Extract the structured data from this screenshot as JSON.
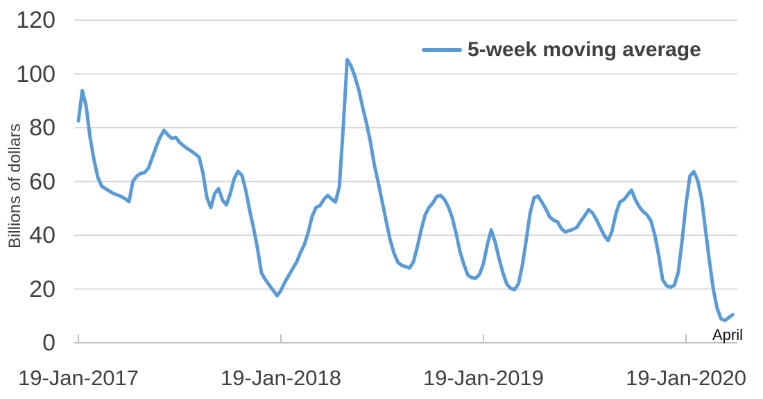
{
  "chart_data": {
    "type": "line",
    "title": "",
    "ylabel": "Billions of dollars",
    "ylim": [
      0,
      120
    ],
    "y_ticks": [
      0,
      20,
      40,
      60,
      80,
      100,
      120
    ],
    "grid": "horizontal",
    "legend_position": "top-right-inside",
    "x_axis": {
      "interval": "weekly",
      "start_label": "19-Jan-2017",
      "tick_labels": [
        "19-Jan-2017",
        "19-Jan-2018",
        "19-Jan-2019",
        "19-Jan-2020"
      ],
      "tick_week_indices": [
        0,
        52,
        104,
        156
      ]
    },
    "series": [
      {
        "name": "5-week moving average",
        "color": "#5B9BD5",
        "values": [
          82.5,
          93.8,
          88,
          76.5,
          68,
          61.5,
          58.2,
          57.3,
          56.4,
          55.5,
          55,
          54.4,
          53.6,
          52.5,
          60,
          62,
          63,
          63.3,
          65,
          69,
          73,
          76.5,
          79,
          77.3,
          76,
          76.4,
          74.5,
          73.3,
          72.2,
          71.3,
          70.2,
          69,
          63,
          54,
          50.3,
          55.5,
          57.3,
          53,
          51.3,
          55.5,
          61,
          63.8,
          62.3,
          56.5,
          49,
          42.5,
          35,
          26,
          23.5,
          21.5,
          19.5,
          17.5,
          19.5,
          22.5,
          25,
          27.5,
          30,
          33.5,
          36.5,
          41,
          47,
          50.3,
          51,
          53.3,
          54.8,
          53.5,
          52.3,
          58,
          80,
          105.3,
          103,
          99,
          94,
          87.5,
          81.5,
          74.5,
          66,
          59.5,
          52.5,
          45.5,
          38.5,
          33.5,
          30,
          28.8,
          28.3,
          27.8,
          30,
          35.5,
          42,
          47.5,
          50.3,
          52,
          54.4,
          54.8,
          53.3,
          50.5,
          46.5,
          40.5,
          33.8,
          29,
          25.2,
          24.2,
          24,
          25.5,
          29.5,
          36.5,
          42,
          37.5,
          31.3,
          26,
          21.8,
          20.2,
          19.8,
          22,
          29,
          38.5,
          48.5,
          54,
          54.6,
          52.3,
          49.8,
          46.8,
          45.6,
          45,
          42.5,
          41.2,
          41.7,
          42.2,
          43,
          45.3,
          47.3,
          49.5,
          48.3,
          45.8,
          42.8,
          39.9,
          38,
          41.5,
          48,
          52.3,
          53.2,
          55,
          56.8,
          53.2,
          50.6,
          48.8,
          47.6,
          45.3,
          40,
          32.5,
          23.5,
          21.2,
          20.7,
          21.4,
          26.2,
          38,
          51.5,
          62,
          63.7,
          60.5,
          53.5,
          42,
          30.5,
          20,
          12.8,
          8.9,
          8.3,
          9.4,
          10.5
        ]
      }
    ],
    "annotations": [
      {
        "text": "April",
        "position": "below-end-of-line"
      }
    ]
  },
  "legend": {
    "label": "5-week moving average"
  },
  "colors": {
    "line": "#5B9BD5",
    "gridline": "#D9D9D9",
    "axis_line": "#BFBFBF",
    "tick_text": "#404040",
    "annotation_text": "#0d0d0d",
    "background": "#FFFFFF"
  }
}
